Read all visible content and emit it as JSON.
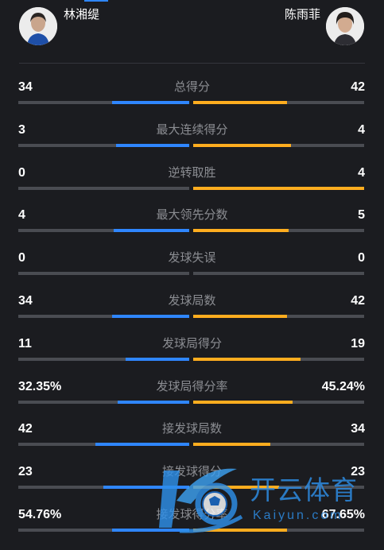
{
  "players": {
    "left": {
      "name": "林湘缇",
      "color": "#2f86ff"
    },
    "right": {
      "name": "陈雨菲",
      "color": "#ffad1f"
    }
  },
  "stats": [
    {
      "label": "总得分",
      "left": "34",
      "right": "42",
      "left_share": 0.45,
      "right_share": 0.55
    },
    {
      "label": "最大连续得分",
      "left": "3",
      "right": "4",
      "left_share": 0.43,
      "right_share": 0.57
    },
    {
      "label": "逆转取胜",
      "left": "0",
      "right": "4",
      "left_share": 0.0,
      "right_share": 1.0
    },
    {
      "label": "最大领先分数",
      "left": "4",
      "right": "5",
      "left_share": 0.44,
      "right_share": 0.56
    },
    {
      "label": "发球失误",
      "left": "0",
      "right": "0",
      "left_share": 0.0,
      "right_share": 0.0
    },
    {
      "label": "发球局数",
      "left": "34",
      "right": "42",
      "left_share": 0.45,
      "right_share": 0.55
    },
    {
      "label": "发球局得分",
      "left": "11",
      "right": "19",
      "left_share": 0.37,
      "right_share": 0.63
    },
    {
      "label": "发球局得分率",
      "left": "32.35%",
      "right": "45.24%",
      "left_share": 0.42,
      "right_share": 0.58
    },
    {
      "label": "接发球局数",
      "left": "42",
      "right": "34",
      "left_share": 0.55,
      "right_share": 0.45
    },
    {
      "label": "接发球得分",
      "left": "23",
      "right": "23",
      "left_share": 0.5,
      "right_share": 0.5
    },
    {
      "label": "接发球得分率",
      "left": "54.76%",
      "right": "67.65%",
      "left_share": 0.45,
      "right_share": 0.55
    }
  ],
  "watermark": {
    "text_cn": "开云体育",
    "text_en": "Kaiyun.com",
    "color": "#2e8fe8"
  }
}
